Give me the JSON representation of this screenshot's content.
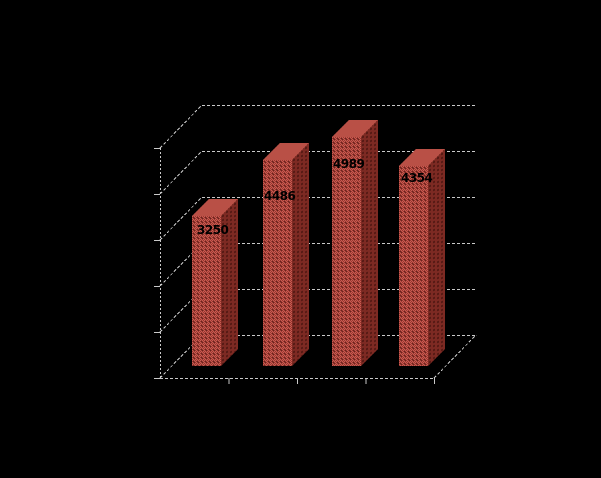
{
  "chart_data": {
    "type": "bar",
    "projection": "3d",
    "title": "",
    "xlabel": "",
    "ylabel": "",
    "values": [
      3250,
      4486,
      4989,
      4354
    ],
    "data_labels": [
      "3250",
      "4486",
      "4989",
      "4354"
    ],
    "ylim": [
      0,
      5000
    ],
    "ytick_interval": 1000,
    "ytick_labels_visible": false,
    "xtick_labels_visible": false,
    "grid": true,
    "legend": false,
    "colors": {
      "background": "#000000",
      "grid_line": "#c9c9c9",
      "label_text": "#000000",
      "bar_front_base": "#c75b52",
      "bar_front_check": "#99372f",
      "bar_front_dot": "#45100c",
      "bar_top_base": "#ce6157",
      "bar_top_check": "#a03b31",
      "bar_side_base": "#99382f",
      "bar_side_check": "#5c1a14",
      "bar_side_dot": "#230605"
    }
  }
}
